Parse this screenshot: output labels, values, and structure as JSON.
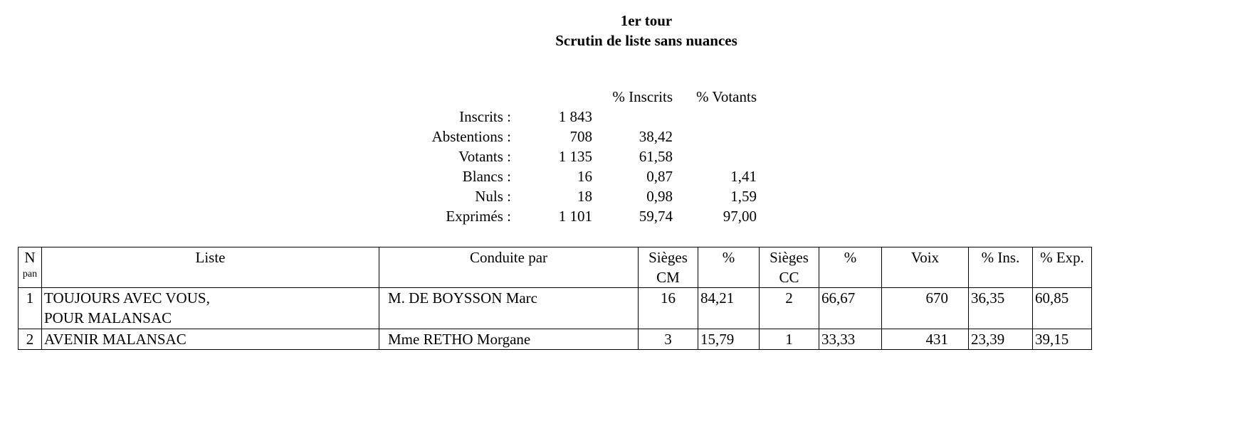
{
  "title": {
    "line1": "1er tour",
    "line2": "Scrutin de liste sans nuances"
  },
  "stats": {
    "headers": {
      "pct_inscrits": "% Inscrits",
      "pct_votants": "% Votants"
    },
    "rows": [
      {
        "label": "Inscrits :",
        "value": "1 843",
        "pct_inscrits": "",
        "pct_votants": ""
      },
      {
        "label": "Abstentions :",
        "value": "708",
        "pct_inscrits": "38,42",
        "pct_votants": ""
      },
      {
        "label": "Votants :",
        "value": "1 135",
        "pct_inscrits": "61,58",
        "pct_votants": ""
      },
      {
        "label": "Blancs :",
        "value": "16",
        "pct_inscrits": "0,87",
        "pct_votants": "1,41"
      },
      {
        "label": "Nuls :",
        "value": "18",
        "pct_inscrits": "0,98",
        "pct_votants": "1,59"
      },
      {
        "label": "Exprimés :",
        "value": "1 101",
        "pct_inscrits": "59,74",
        "pct_votants": "97,00"
      }
    ]
  },
  "table": {
    "headers": {
      "n": "N",
      "pan": "pan",
      "liste": "Liste",
      "conduite": "Conduite par",
      "sieges_cm_1": "Sièges",
      "sieges_cm_2": "CM",
      "pct_cm": "%",
      "sieges_cc_1": "Sièges",
      "sieges_cc_2": "CC",
      "pct_cc": "%",
      "voix": "Voix",
      "pct_ins": "% Ins.",
      "pct_exp": "% Exp."
    },
    "rows": [
      {
        "n": "1",
        "liste": "TOUJOURS AVEC VOUS, POUR MALANSAC",
        "conduite": "M. DE BOYSSON Marc",
        "sieges_cm": "16",
        "pct_cm": "84,21",
        "sieges_cc": "2",
        "pct_cc": "66,67",
        "voix": "670",
        "pct_ins": "36,35",
        "pct_exp": "60,85"
      },
      {
        "n": "2",
        "liste": "AVENIR MALANSAC",
        "conduite": "Mme RETHO Morgane",
        "sieges_cm": "3",
        "pct_cm": "15,79",
        "sieges_cc": "1",
        "pct_cc": "33,33",
        "voix": "431",
        "pct_ins": "23,39",
        "pct_exp": "39,15"
      }
    ]
  }
}
